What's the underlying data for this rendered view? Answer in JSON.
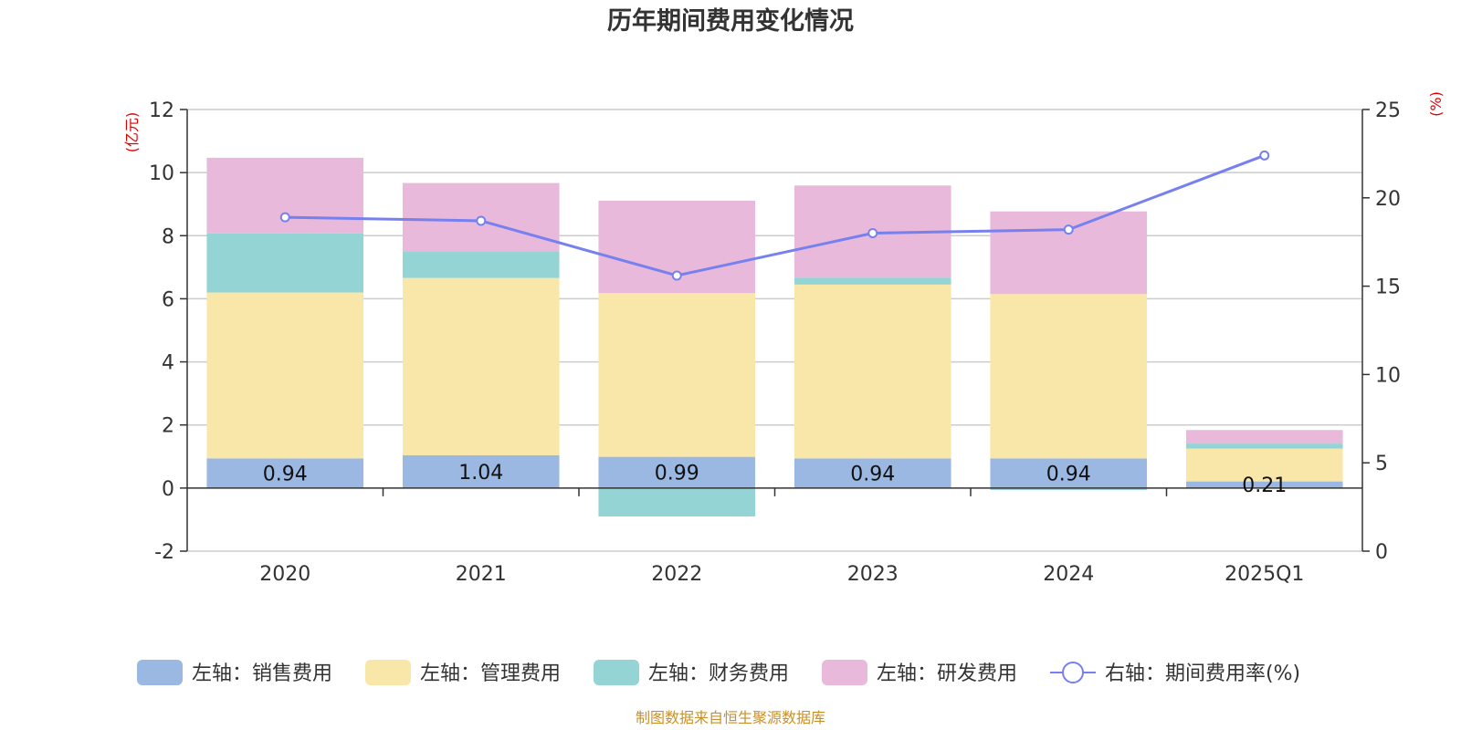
{
  "chart_data": {
    "type": "bar",
    "title": "历年期间费用变化情况",
    "categories": [
      "2020",
      "2021",
      "2022",
      "2023",
      "2024",
      "2025Q1"
    ],
    "left_axis": {
      "unit_label": "(亿元)",
      "ylim": [
        -2,
        12
      ],
      "ticks": [
        -2,
        0,
        2,
        4,
        6,
        8,
        10,
        12
      ]
    },
    "right_axis": {
      "unit_label": "(%)",
      "ylim": [
        0,
        25
      ],
      "ticks": [
        0,
        5,
        10,
        15,
        20,
        25
      ]
    },
    "series": [
      {
        "name": "左轴：销售费用",
        "type": "bar",
        "stack": true,
        "color": "#9bb8e3",
        "values": [
          0.94,
          1.04,
          0.99,
          0.94,
          0.94,
          0.21
        ],
        "labels": [
          "0.94",
          "1.04",
          "0.99",
          "0.94",
          "0.94",
          "0.21"
        ]
      },
      {
        "name": "左轴：管理费用",
        "type": "bar",
        "stack": true,
        "color": "#f8e7a8",
        "values": [
          5.26,
          5.62,
          5.19,
          5.51,
          5.21,
          1.04
        ]
      },
      {
        "name": "左轴：财务费用",
        "type": "bar",
        "stack": true,
        "color": "#95d4d4",
        "values": [
          1.87,
          0.84,
          -0.9,
          0.22,
          -0.06,
          0.16
        ]
      },
      {
        "name": "左轴：研发费用",
        "type": "bar",
        "stack": true,
        "color": "#e8b9da",
        "values": [
          2.4,
          2.17,
          2.93,
          2.92,
          2.62,
          0.43
        ]
      },
      {
        "name": "右轴：期间费用率(%)",
        "type": "line",
        "axis": "right",
        "color": "#7680ef",
        "values": [
          18.9,
          18.7,
          15.6,
          18.0,
          18.2,
          22.4
        ]
      }
    ],
    "legend_position": "bottom",
    "grid": true
  },
  "footer": {
    "source": "制图数据来自恒生聚源数据库"
  }
}
